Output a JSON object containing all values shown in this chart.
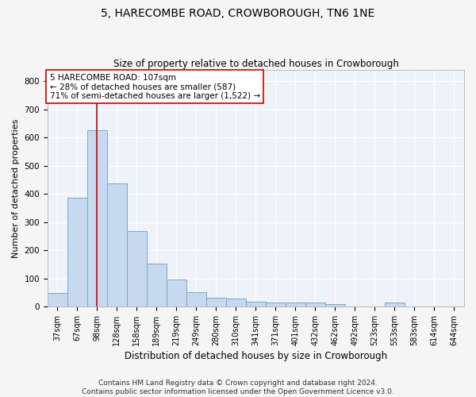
{
  "title": "5, HARECOMBE ROAD, CROWBOROUGH, TN6 1NE",
  "subtitle": "Size of property relative to detached houses in Crowborough",
  "xlabel": "Distribution of detached houses by size in Crowborough",
  "ylabel": "Number of detached properties",
  "categories": [
    "37sqm",
    "67sqm",
    "98sqm",
    "128sqm",
    "158sqm",
    "189sqm",
    "219sqm",
    "249sqm",
    "280sqm",
    "310sqm",
    "341sqm",
    "371sqm",
    "401sqm",
    "432sqm",
    "462sqm",
    "492sqm",
    "523sqm",
    "553sqm",
    "583sqm",
    "614sqm",
    "644sqm"
  ],
  "values": [
    48,
    385,
    625,
    438,
    268,
    152,
    97,
    52,
    30,
    28,
    17,
    13,
    13,
    13,
    8,
    0,
    0,
    13,
    0,
    0,
    0
  ],
  "bar_color": "#c7d9ee",
  "bar_edge_color": "#7ba7cc",
  "vline_x": 2,
  "vline_color": "#cc0000",
  "annotation_text": "5 HARECOMBE ROAD: 107sqm\n← 28% of detached houses are smaller (587)\n71% of semi-detached houses are larger (1,522) →",
  "annotation_box_color": "#ffffff",
  "annotation_box_edge": "#cc0000",
  "ylim": [
    0,
    840
  ],
  "yticks": [
    0,
    100,
    200,
    300,
    400,
    500,
    600,
    700,
    800
  ],
  "background_color": "#eef2f9",
  "grid_color": "#ffffff",
  "footer": "Contains HM Land Registry data © Crown copyright and database right 2024.\nContains public sector information licensed under the Open Government Licence v3.0.",
  "title_fontsize": 10,
  "subtitle_fontsize": 8.5,
  "annotation_fontsize": 7.5,
  "ylabel_fontsize": 8,
  "xlabel_fontsize": 8.5,
  "tick_fontsize": 7,
  "ytick_fontsize": 7.5,
  "footer_fontsize": 6.5
}
